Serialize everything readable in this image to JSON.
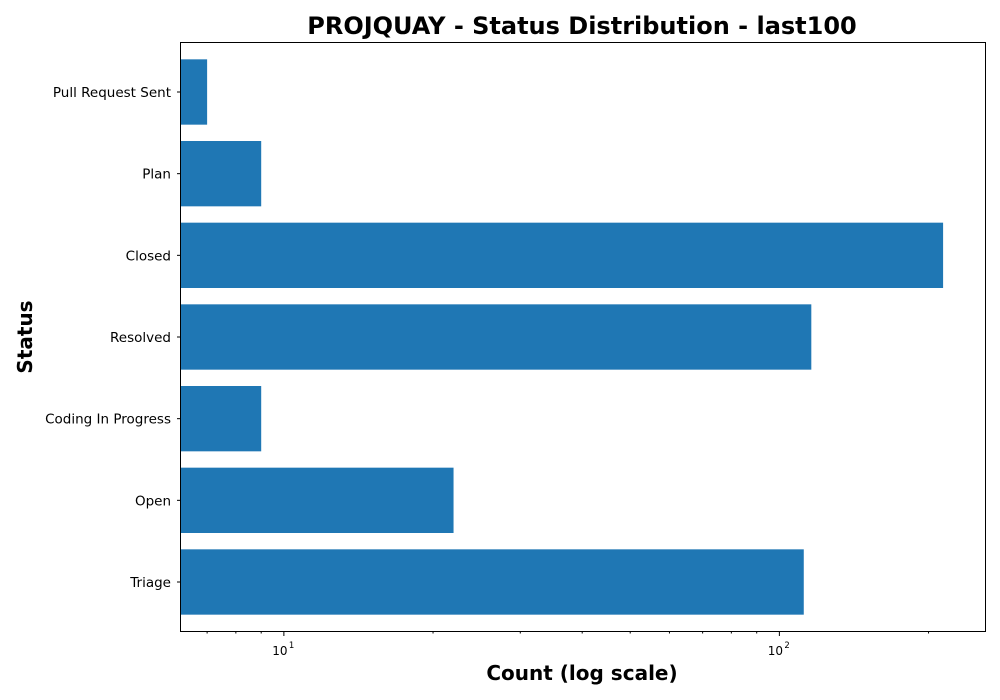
{
  "chart_data": {
    "type": "bar",
    "orientation": "horizontal",
    "title": "PROJQUAY - Status Distribution - last100",
    "xlabel": "Count (log scale)",
    "ylabel": "Status",
    "x_scale": "log",
    "xlim": [
      6.2,
      260
    ],
    "x_ticks": [
      {
        "value": 10,
        "base": "10",
        "exp": "1"
      },
      {
        "value": 100,
        "base": "10",
        "exp": "2"
      }
    ],
    "categories": [
      "Triage",
      "Open",
      "Coding In Progress",
      "Resolved",
      "Closed",
      "Plan",
      "Pull Request Sent"
    ],
    "values": [
      112,
      22,
      9,
      116,
      214,
      9,
      7
    ],
    "bar_color": "#1f77b4",
    "grid": false,
    "legend": "none"
  }
}
